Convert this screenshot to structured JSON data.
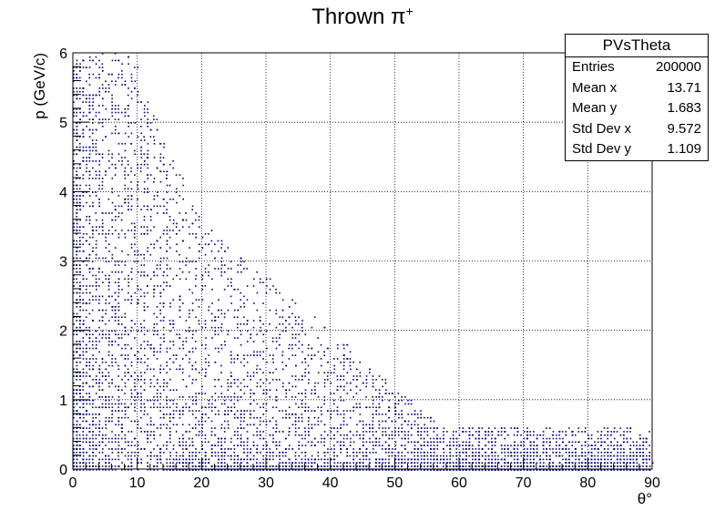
{
  "chart_data": {
    "type": "scatter",
    "title": "Thrown π",
    "title_superscript": "+",
    "xlabel": "θ°",
    "ylabel": "p (GeV/c)",
    "xlim": [
      0,
      90
    ],
    "ylim": [
      0,
      6
    ],
    "x_ticks": [
      "0",
      "10",
      "20",
      "30",
      "40",
      "50",
      "60",
      "70",
      "80",
      "90"
    ],
    "y_ticks": [
      "0",
      "1",
      "2",
      "3",
      "4",
      "5",
      "6"
    ],
    "grid": true,
    "marker_color": "#000080",
    "stats": {
      "name": "PVsTheta",
      "rows": [
        {
          "label": "Entries",
          "value": "200000"
        },
        {
          "label": "Mean x",
          "value": "13.71"
        },
        {
          "label": "Mean y",
          "value": "1.683"
        },
        {
          "label": "Std Dev x",
          "value": "9.572"
        },
        {
          "label": "Std Dev y",
          "value": "1.109"
        }
      ]
    },
    "distribution": {
      "entries": 200000,
      "mean_x": 13.71,
      "mean_y": 1.683,
      "std_x": 9.572,
      "std_y": 1.109
    }
  }
}
